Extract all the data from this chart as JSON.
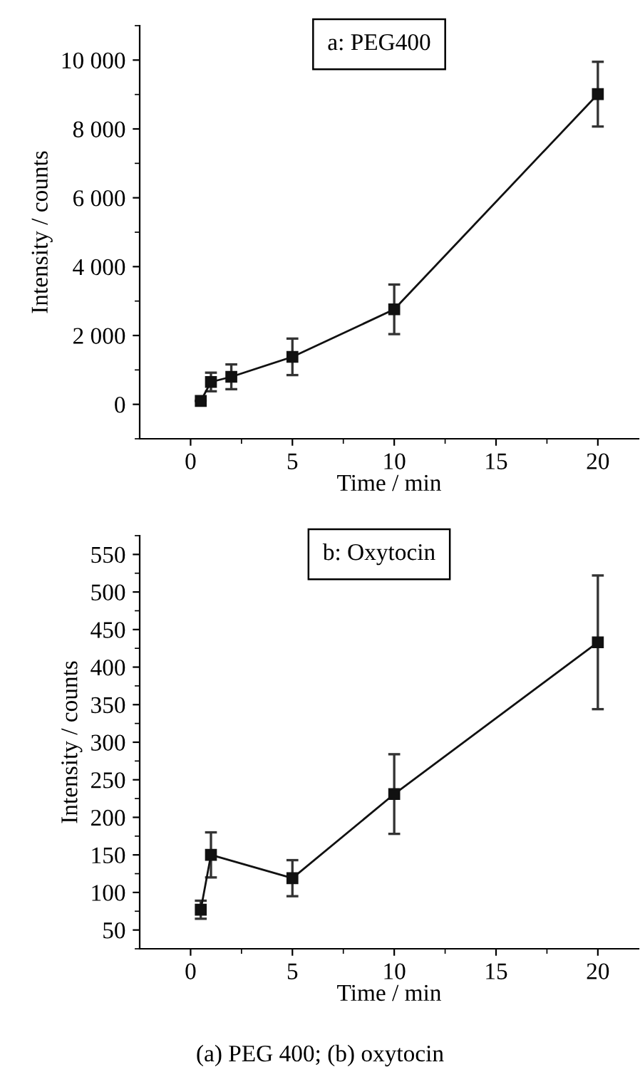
{
  "chart_data": [
    {
      "type": "line",
      "title": "a: PEG400",
      "xlabel": "Time / min",
      "ylabel": "Intensity / counts",
      "x": [
        0.5,
        1,
        2,
        5,
        10,
        20
      ],
      "series": [
        {
          "color": "#111111",
          "values": [
            100,
            650,
            800,
            1380,
            2760,
            9010
          ],
          "errors": [
            null,
            270,
            360,
            530,
            720,
            940
          ]
        }
      ],
      "marker": "square",
      "line_style": "solid",
      "grid": false,
      "legend": false,
      "xlim": [
        -2.5,
        22
      ],
      "xticks": [
        0,
        {
          "value": 2.5,
          "label": null
        },
        5,
        {
          "value": 7.5,
          "label": null
        },
        10,
        {
          "value": 12.5,
          "label": null
        },
        15,
        {
          "value": 17.5,
          "label": null
        },
        20
      ],
      "ylim": [
        -1000,
        11000
      ],
      "yticks": [
        {
          "value": -1000,
          "label": null
        },
        {
          "value": 0,
          "label": "0"
        },
        {
          "value": 1000,
          "label": null
        },
        {
          "value": 2000,
          "label": "2 000"
        },
        {
          "value": 3000,
          "label": null
        },
        {
          "value": 4000,
          "label": "4 000"
        },
        {
          "value": 5000,
          "label": null
        },
        {
          "value": 6000,
          "label": "6 000"
        },
        {
          "value": 7000,
          "label": null
        },
        {
          "value": 8000,
          "label": "8 000"
        },
        {
          "value": 9000,
          "label": null
        },
        {
          "value": 10000,
          "label": "10 000"
        },
        {
          "value": 11000,
          "label": null
        }
      ]
    },
    {
      "type": "line",
      "title": "b: Oxytocin",
      "xlabel": "Time / min",
      "ylabel": "Intensity / counts",
      "x": [
        0.5,
        1,
        5,
        10,
        20
      ],
      "series": [
        {
          "color": "#111111",
          "values": [
            77,
            150,
            119,
            231,
            433
          ],
          "errors": [
            12,
            30,
            24,
            53,
            89
          ]
        }
      ],
      "marker": "square",
      "line_style": "solid",
      "grid": false,
      "legend": false,
      "xlim": [
        -2.5,
        22
      ],
      "xticks": [
        0,
        {
          "value": 2.5,
          "label": null
        },
        5,
        {
          "value": 7.5,
          "label": null
        },
        10,
        {
          "value": 12.5,
          "label": null
        },
        15,
        {
          "value": 17.5,
          "label": null
        },
        20
      ],
      "ylim": [
        25,
        575
      ],
      "yticks": [
        {
          "value": 25,
          "label": null
        },
        50,
        {
          "value": 75,
          "label": null
        },
        100,
        {
          "value": 125,
          "label": null
        },
        150,
        {
          "value": 175,
          "label": null
        },
        200,
        {
          "value": 225,
          "label": null
        },
        250,
        {
          "value": 275,
          "label": null
        },
        300,
        {
          "value": 325,
          "label": null
        },
        350,
        {
          "value": 375,
          "label": null
        },
        400,
        {
          "value": 425,
          "label": null
        },
        450,
        {
          "value": 475,
          "label": null
        },
        500,
        {
          "value": 525,
          "label": null
        },
        550,
        {
          "value": 575,
          "label": null
        }
      ],
      "annotations": [
        "(a) PEG 400; (b) oxytocin"
      ]
    }
  ]
}
